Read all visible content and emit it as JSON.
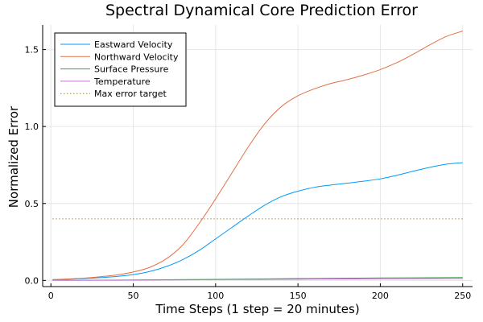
{
  "chart_data": {
    "type": "line",
    "title": "Spectral Dynamical Core Prediction Error",
    "xlabel": "Time Steps (1 step = 20 minutes)",
    "ylabel": "Normalized Error",
    "xlim": [
      -5,
      256
    ],
    "ylim": [
      -0.04,
      1.66
    ],
    "xticks": [
      0,
      50,
      100,
      150,
      200,
      250
    ],
    "yticks": [
      0.0,
      0.5,
      1.0,
      1.5
    ],
    "xtick_labels": [
      "0",
      "50",
      "100",
      "150",
      "200",
      "250"
    ],
    "ytick_labels": [
      "0.0",
      "0.5",
      "1.0",
      "1.5"
    ],
    "grid": true,
    "legend_position": "top-left",
    "series": [
      {
        "name": "Eastward Velocity",
        "color": "#009af9",
        "style": "solid",
        "x": [
          1,
          10,
          20,
          30,
          40,
          50,
          60,
          70,
          80,
          90,
          100,
          110,
          120,
          130,
          140,
          150,
          160,
          170,
          180,
          190,
          200,
          210,
          220,
          230,
          240,
          250
        ],
        "y": [
          0.005,
          0.008,
          0.012,
          0.018,
          0.026,
          0.038,
          0.058,
          0.09,
          0.135,
          0.195,
          0.27,
          0.345,
          0.42,
          0.49,
          0.545,
          0.58,
          0.605,
          0.62,
          0.632,
          0.645,
          0.66,
          0.683,
          0.71,
          0.735,
          0.755,
          0.765
        ]
      },
      {
        "name": "Northward Velocity",
        "color": "#e26f46",
        "style": "solid",
        "x": [
          1,
          10,
          20,
          30,
          40,
          50,
          60,
          70,
          80,
          90,
          100,
          110,
          120,
          130,
          140,
          150,
          160,
          170,
          180,
          190,
          200,
          210,
          220,
          230,
          240,
          250
        ],
        "y": [
          0.005,
          0.009,
          0.015,
          0.024,
          0.036,
          0.055,
          0.085,
          0.14,
          0.23,
          0.37,
          0.53,
          0.7,
          0.87,
          1.02,
          1.13,
          1.2,
          1.245,
          1.28,
          1.305,
          1.335,
          1.37,
          1.415,
          1.47,
          1.53,
          1.585,
          1.62
        ]
      },
      {
        "name": "Surface Pressure",
        "color": "#3da44d",
        "style": "solid",
        "x": [
          1,
          50,
          100,
          150,
          200,
          250
        ],
        "y": [
          0.001,
          0.003,
          0.007,
          0.012,
          0.016,
          0.019
        ]
      },
      {
        "name": "Temperature",
        "color": "#c271d2",
        "style": "solid",
        "x": [
          1,
          50,
          100,
          150,
          200,
          250
        ],
        "y": [
          0.001,
          0.002,
          0.005,
          0.008,
          0.011,
          0.013
        ]
      },
      {
        "name": "Max error target",
        "color": "#ac8d18",
        "style": "dotted",
        "x": [
          1,
          250
        ],
        "y": [
          0.4,
          0.4
        ]
      }
    ]
  }
}
